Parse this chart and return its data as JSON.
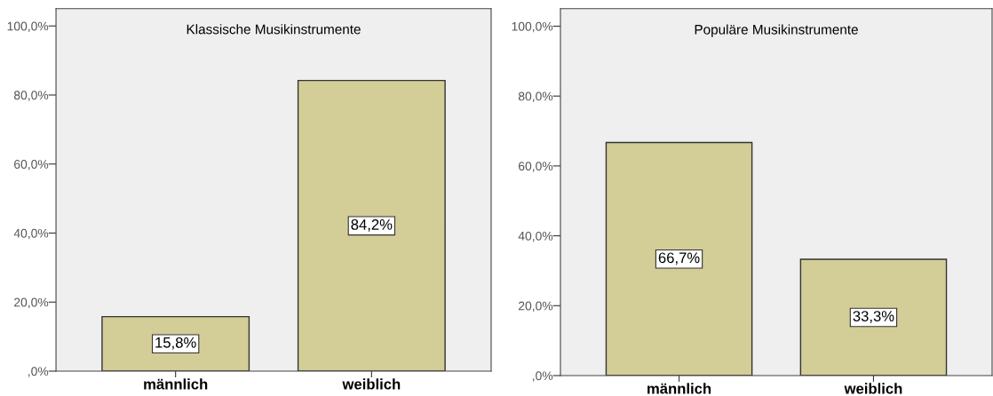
{
  "chart_data": [
    {
      "type": "bar",
      "title": "Klassische Musikinstrumente",
      "categories": [
        "männlich",
        "weiblich"
      ],
      "values": [
        15.8,
        84.2
      ],
      "value_labels": [
        "15,8%",
        "84,2%"
      ],
      "color": "#d3cd97",
      "ylim": [
        0,
        105
      ],
      "yticks": [
        {
          "value": 0,
          "label": ",0%"
        },
        {
          "value": 20,
          "label": "20,0%"
        },
        {
          "value": 40,
          "label": "40,0%"
        },
        {
          "value": 60,
          "label": "60,0%"
        },
        {
          "value": 80,
          "label": "80,0%"
        },
        {
          "value": 100,
          "label": "100,0%"
        }
      ],
      "grid": false,
      "legend": false
    },
    {
      "type": "bar",
      "title": "Populäre Musikinstrumente",
      "categories": [
        "männlich",
        "weiblich"
      ],
      "values": [
        66.7,
        33.3
      ],
      "value_labels": [
        "66,7%",
        "33,3%"
      ],
      "color": "#d3cd97",
      "ylim": [
        0,
        105
      ],
      "yticks": [
        {
          "value": 0,
          "label": ",0%"
        },
        {
          "value": 20,
          "label": "20,0%"
        },
        {
          "value": 40,
          "label": "40,0%"
        },
        {
          "value": 60,
          "label": "60,0%"
        },
        {
          "value": 80,
          "label": "80,0%"
        },
        {
          "value": 100,
          "label": "100,0%"
        }
      ],
      "grid": false,
      "legend": false
    }
  ]
}
